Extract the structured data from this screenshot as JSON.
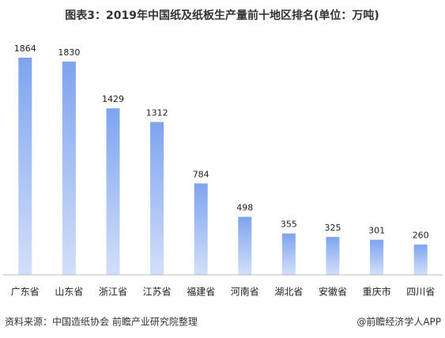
{
  "chart_data": {
    "type": "bar",
    "title": "图表3：2019年中国纸及纸板生产量前十地区排名(单位：万吨)",
    "categories": [
      "广东省",
      "山东省",
      "浙江省",
      "江苏省",
      "福建省",
      "河南省",
      "湖北省",
      "安徽省",
      "重庆市",
      "四川省"
    ],
    "values": [
      1864,
      1830,
      1429,
      1312,
      784,
      498,
      355,
      325,
      301,
      260
    ],
    "color": "#7ea4ef",
    "source": "资料来源：中国造纸协会 前瞻产业研究院整理",
    "credit": "@前瞻经济学人APP"
  }
}
